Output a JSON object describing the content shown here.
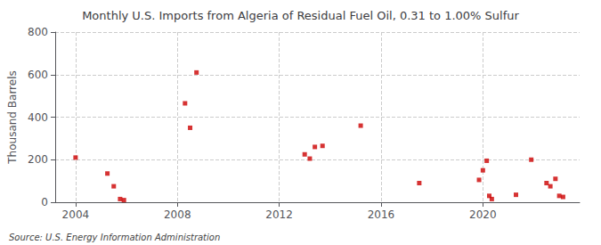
{
  "chart_data": {
    "type": "scatter",
    "title": "Monthly U.S. Imports from Algeria of Residual Fuel Oil, 0.31 to 1.00% Sulfur",
    "ylabel": "Thousand Barrels",
    "annotations": [
      "Source: U.S. Energy Information Administration"
    ],
    "color": "#cc0000",
    "marker": "square",
    "grid": true,
    "xlim": [
      2003.2,
      2023.8
    ],
    "ylim": [
      0,
      800
    ],
    "xticks": [
      2004,
      2008,
      2012,
      2016,
      2020
    ],
    "yticks": [
      0,
      200,
      400,
      600,
      800
    ],
    "x": [
      2004.0,
      2005.25,
      2005.5,
      2005.75,
      2005.9,
      2008.3,
      2008.5,
      2008.75,
      2013.0,
      2013.2,
      2013.4,
      2013.7,
      2015.2,
      2017.5,
      2019.85,
      2020.0,
      2020.15,
      2020.25,
      2020.35,
      2021.3,
      2021.9,
      2022.5,
      2022.65,
      2022.85,
      2023.0,
      2023.15
    ],
    "values": [
      210,
      135,
      75,
      15,
      10,
      465,
      350,
      610,
      225,
      205,
      260,
      265,
      360,
      90,
      105,
      150,
      195,
      30,
      15,
      35,
      200,
      90,
      75,
      110,
      30,
      25
    ]
  }
}
